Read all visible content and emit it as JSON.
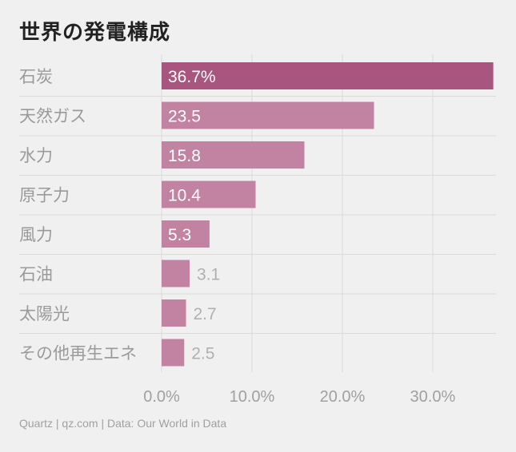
{
  "title": "世界の発電構成",
  "footer": "Quartz | qz.com | Data: Our World in Data",
  "colors": {
    "background": "#f0f0f0",
    "bar_primary": "#a8567f",
    "bar_secondary": "#c283a3",
    "grid": "#dadada",
    "category_text": "#9a9a9a",
    "axis_text": "#a0a0a0",
    "label_inside": "#ffffff",
    "label_outside": "#b0b0b0"
  },
  "chart_data": {
    "type": "bar",
    "orientation": "horizontal",
    "categories": [
      "石炭",
      "天然ガス",
      "水力",
      "原子力",
      "風力",
      "石油",
      "太陽光",
      "その他再生エネ"
    ],
    "values": [
      36.7,
      23.5,
      15.8,
      10.4,
      5.3,
      3.1,
      2.7,
      2.5
    ],
    "value_labels": [
      "36.7%",
      "23.5",
      "15.8",
      "10.4",
      "5.3",
      "3.1",
      "2.7",
      "2.5"
    ],
    "x_ticks": [
      0,
      10,
      20,
      30
    ],
    "x_tick_labels": [
      "0.0%",
      "10.0%",
      "20.0%",
      "30.0%"
    ],
    "xlim": [
      0,
      37
    ],
    "grid": true
  }
}
